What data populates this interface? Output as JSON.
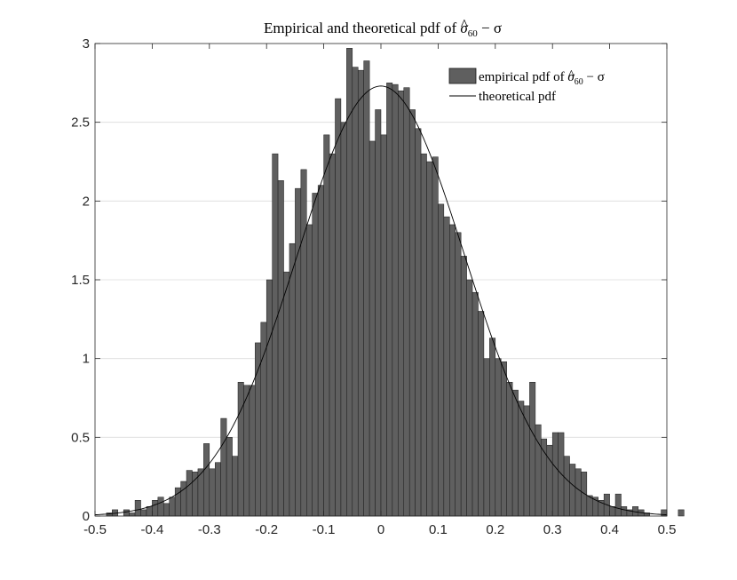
{
  "chart_data": {
    "type": "bar",
    "title": "Empirical and theoretical pdf of σ̂₆₀ − σ",
    "title_parts": {
      "lead": "Empirical and theoretical pdf of ",
      "sigma": "σ",
      "sigma_hat": "^",
      "subscript": "60",
      "tail": " − σ"
    },
    "xlim": [
      -0.5,
      0.5
    ],
    "ylim": [
      0,
      3
    ],
    "grid": "horizontal",
    "legend_position": "top-right",
    "x_ticks": [
      "-0.5",
      "-0.4",
      "-0.3",
      "-0.2",
      "-0.1",
      "0",
      "0.1",
      "0.2",
      "0.3",
      "0.4",
      "0.5"
    ],
    "y_ticks": [
      "0",
      "0.5",
      "1",
      "1.5",
      "2",
      "2.5",
      "3"
    ],
    "colors": {
      "bar_fill": "#5f5f5f",
      "bar_edge": "#1a1a1a",
      "pdf_line": "#000000"
    },
    "series": [
      {
        "name": "empirical pdf of σ̂₆₀ − σ",
        "name_parts": {
          "lead": "empirical pdf of ",
          "sigma": "σ",
          "sigma_hat": "^",
          "subscript": "60",
          "tail": " − σ"
        },
        "kind": "histogram",
        "bin_width": 0.01,
        "bin_start": -0.48,
        "values": [
          0.02,
          0.04,
          0.0,
          0.04,
          0.02,
          0.1,
          0.04,
          0.06,
          0.1,
          0.12,
          0.08,
          0.12,
          0.18,
          0.22,
          0.29,
          0.28,
          0.3,
          0.46,
          0.3,
          0.34,
          0.62,
          0.5,
          0.38,
          0.85,
          0.83,
          0.83,
          1.1,
          1.23,
          1.5,
          2.3,
          2.13,
          1.55,
          1.73,
          2.08,
          2.2,
          1.85,
          2.05,
          2.1,
          2.42,
          2.3,
          2.65,
          2.5,
          2.97,
          2.85,
          2.83,
          2.89,
          2.38,
          2.58,
          2.42,
          2.75,
          2.74,
          2.7,
          2.72,
          2.58,
          2.46,
          2.3,
          2.25,
          2.28,
          1.98,
          1.9,
          1.85,
          1.8,
          1.65,
          1.5,
          1.42,
          1.3,
          1.0,
          1.13,
          1.0,
          0.98,
          0.85,
          0.8,
          0.73,
          0.7,
          0.85,
          0.58,
          0.49,
          0.45,
          0.53,
          0.53,
          0.38,
          0.33,
          0.3,
          0.28,
          0.13,
          0.12,
          0.1,
          0.14,
          0.06,
          0.14,
          0.06,
          0.04,
          0.06,
          0.04,
          0.02,
          0.0,
          0.0,
          0.04,
          0.0,
          0.0,
          0.04,
          0.0
        ]
      },
      {
        "name": "theoretical pdf",
        "kind": "normal-pdf-curve",
        "mean": 0.0,
        "std": 0.1463,
        "peak_value": 2.73
      }
    ]
  }
}
